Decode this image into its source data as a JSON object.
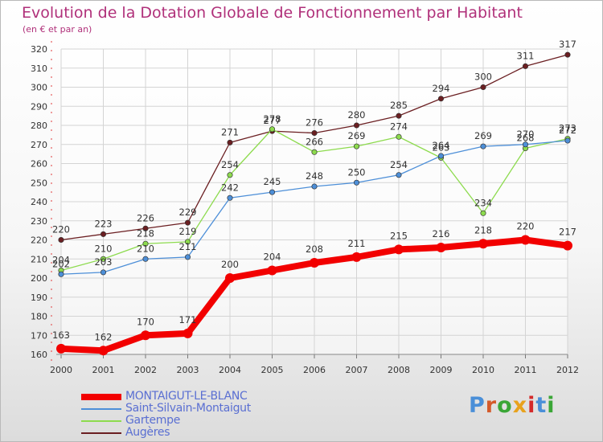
{
  "title": "Evolution de la Dotation Globale de Fonctionnement par Habitant",
  "subtitle": "(en € et par an)",
  "logo": {
    "text": "Proxiti",
    "letter_colors": [
      "#4a8fd8",
      "#d45a2a",
      "#3aa636",
      "#e8a21c",
      "#d42a2a",
      "#4a8fd8",
      "#3aa636"
    ]
  },
  "chart_data": {
    "type": "line",
    "title": "Evolution de la Dotation Globale de Fonctionnement par Habitant",
    "subtitle": "(en € et par an)",
    "xlabel": "",
    "ylabel": "",
    "x": [
      "2000",
      "2001",
      "2002",
      "2003",
      "2004",
      "2005",
      "2006",
      "2007",
      "2008",
      "2009",
      "2010",
      "2011",
      "2012"
    ],
    "ylim": [
      160,
      320
    ],
    "yticks": [
      "160",
      "170",
      "180",
      "190",
      "200",
      "210",
      "220",
      "230",
      "240",
      "250",
      "260",
      "270",
      "280",
      "290",
      "300",
      "310",
      "320"
    ],
    "grid": true,
    "legend_position": "bottom-left",
    "series": [
      {
        "name": "Augères",
        "color": "#6b1f22",
        "values": [
          220,
          223,
          226,
          229,
          271,
          277,
          276,
          280,
          285,
          294,
          300,
          311,
          317
        ]
      },
      {
        "name": "Gartempe",
        "color": "#8ddb4e",
        "values": [
          204,
          210,
          218,
          219,
          254,
          278,
          266,
          269,
          274,
          263,
          234,
          268,
          273
        ]
      },
      {
        "name": "Saint-Silvain-Montaigut",
        "color": "#4d8fd8",
        "values": [
          202,
          203,
          210,
          211,
          242,
          245,
          248,
          250,
          254,
          264,
          269,
          270,
          272
        ]
      },
      {
        "name": "MONTAIGUT-LE-BLANC",
        "color": "#f20000",
        "values": [
          163,
          162,
          170,
          171,
          200,
          204,
          208,
          211,
          215,
          216,
          218,
          220,
          217
        ]
      }
    ],
    "legend": [
      {
        "name": "MONTAIGUT-LE-BLANC",
        "color": "#f20000"
      },
      {
        "name": "Saint-Silvain-Montaigut",
        "color": "#4d8fd8"
      },
      {
        "name": "Gartempe",
        "color": "#8ddb4e"
      },
      {
        "name": "Augères",
        "color": "#6b1f22"
      }
    ]
  }
}
